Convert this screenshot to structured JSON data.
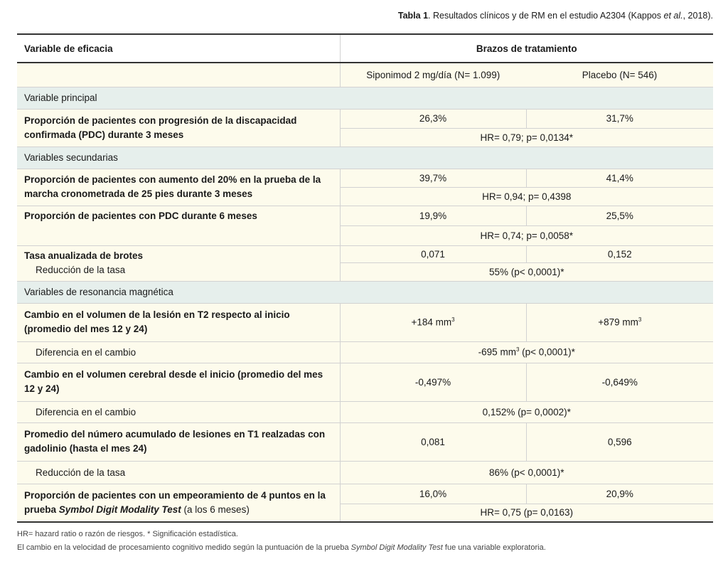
{
  "caption": {
    "bold": "Tabla 1",
    "pre": ". Resultados clínicos y de RM en el estudio A2304 (Kappos ",
    "ital": "et al.",
    "post": ", 2018)."
  },
  "header": {
    "col1": "Variable de eficacia",
    "col2": "Brazos de tratamiento",
    "arm1": "Siponimod 2 mg/día (N= 1.099)",
    "arm2": "Placebo (N= 546)"
  },
  "sections": [
    "Variable principal",
    "Variables secundarias",
    "Variables de resonancia magnética"
  ],
  "rows": [
    {
      "label": "Proporción de pacientes con progresión de la discapacidad confirmada (PDC) durante 3 meses",
      "a": "26,3%",
      "b": "31,7%",
      "stat": "HR= 0,79; p= 0,0134*"
    },
    {
      "label": "Proporción de pacientes con aumento del 20% en la prueba de la marcha cronometrada de 25 pies durante 3 meses",
      "a": "39,7%",
      "b": "41,4%",
      "stat": "HR= 0,94; p= 0,4398"
    },
    {
      "label": "Proporción de pacientes con PDC durante 6 meses",
      "a": "19,9%",
      "b": "25,5%",
      "stat": "HR= 0,74; p= 0,0058*"
    },
    {
      "label": "Tasa anualizada de brotes",
      "sublabel": "Reducción de la tasa",
      "a": "0,071",
      "b": "0,152",
      "stat": "55% (p< 0,0001)*"
    },
    {
      "label": "Cambio en el volumen de la lesión en T2 respecto al inicio (promedio del mes 12 y 24)",
      "a": "+184 mm",
      "b": "+879 mm",
      "sup": "3",
      "sublabel": "Diferencia en el cambio",
      "stat_pre": "-695 mm",
      "stat_post": " (p< 0,0001)*"
    },
    {
      "label": "Cambio en el volumen cerebral desde el inicio (promedio del mes 12 y 24)",
      "a": "-0,497%",
      "b": "-0,649%",
      "sublabel": "Diferencia en el cambio",
      "stat": "0,152% (p= 0,0002)*"
    },
    {
      "label": "Promedio del número acumulado de lesiones en T1 realzadas con gadolinio (hasta el mes 24)",
      "a": "0,081",
      "b": "0,596",
      "sublabel": "Reducción de la tasa",
      "stat": "86% (p< 0,0001)*"
    },
    {
      "label_pre": "Proporción de pacientes con un empeoramiento de 4 puntos en la prueba ",
      "label_ital": "Symbol Digit Modality Test",
      "label_post": " (a los 6 meses)",
      "a": "16,0%",
      "b": "20,9%",
      "stat": "HR= 0,75 (p= 0,0163)"
    }
  ],
  "footnotes": {
    "line1": "HR= hazard ratio o razón de riesgos. * Significación estadística.",
    "line2_pre": "El cambio en la velocidad de procesamiento cognitivo medido según la puntuación de la prueba ",
    "line2_ital": "Symbol Digit Modality Test",
    "line2_post": " fue una variable exploratoria."
  }
}
